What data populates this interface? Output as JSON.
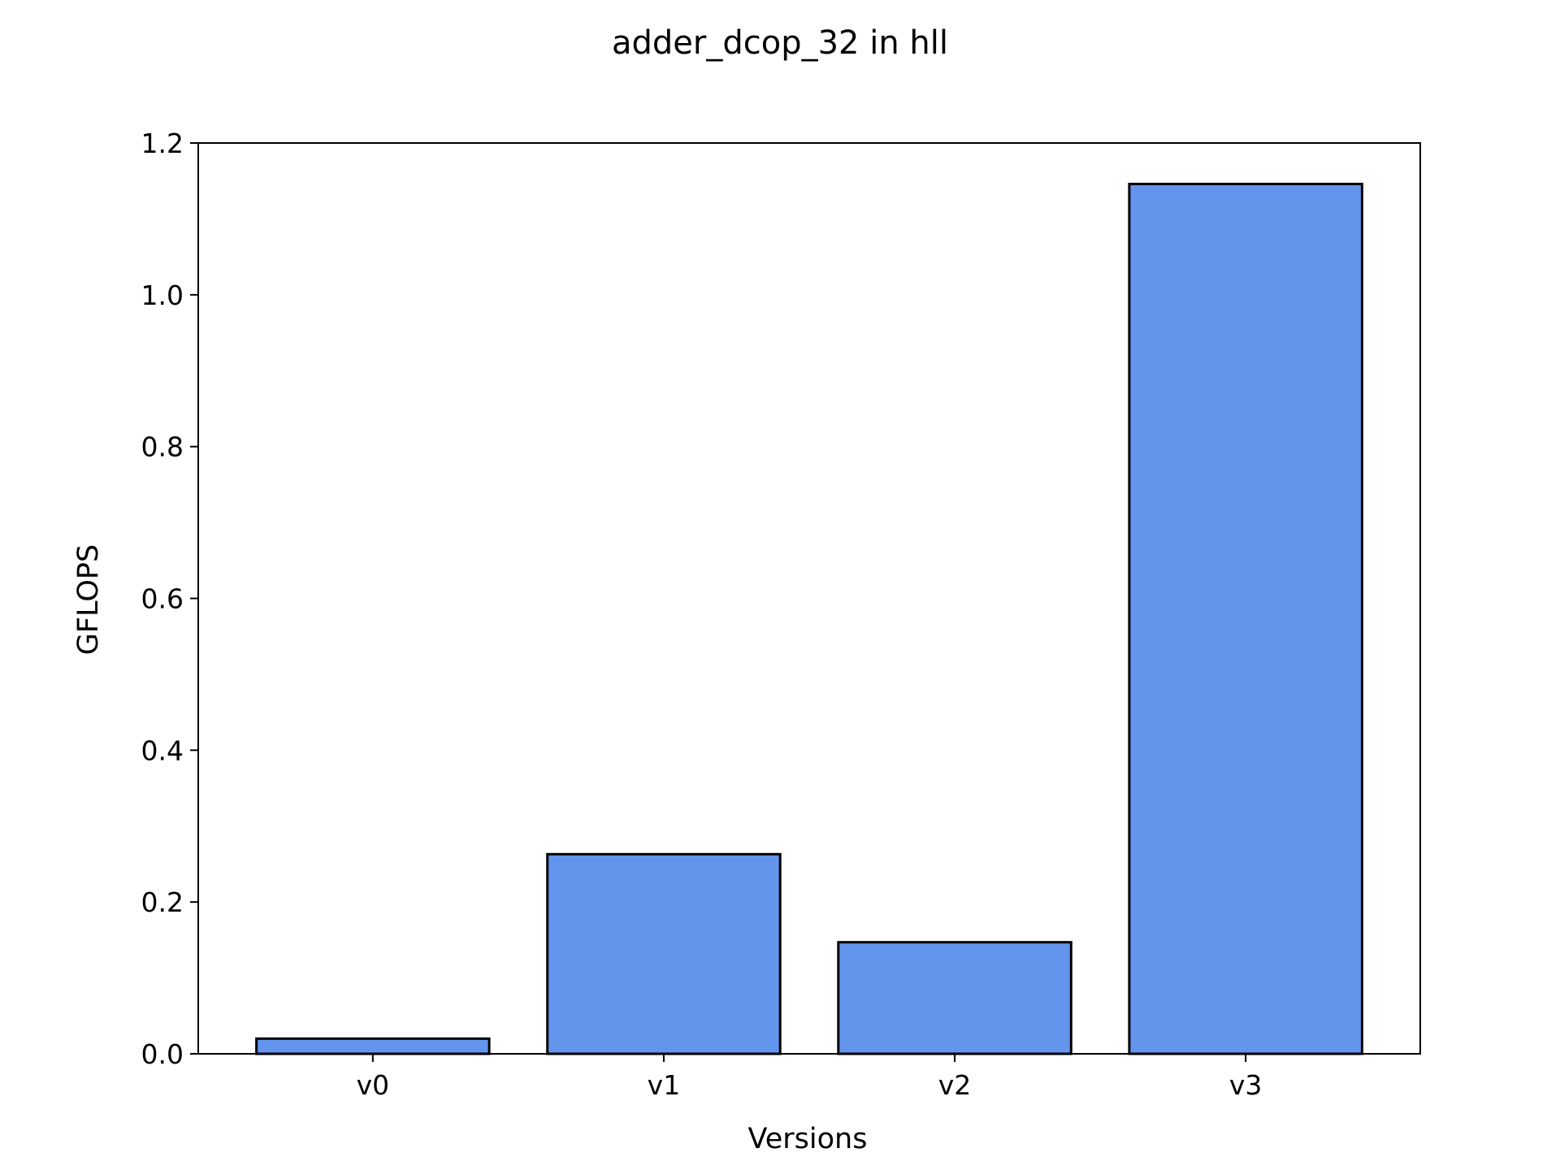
{
  "chart_data": {
    "type": "bar",
    "title": "adder_dcop_32 in hll",
    "xlabel": "Versions",
    "ylabel": "GFLOPS",
    "categories": [
      "v0",
      "v1",
      "v2",
      "v3"
    ],
    "values": [
      0.02,
      0.263,
      0.147,
      1.146
    ],
    "ylim": [
      0,
      1.2
    ],
    "yticks": [
      "0.0",
      "0.2",
      "0.4",
      "0.6",
      "0.8",
      "1.0",
      "1.2"
    ],
    "grid": false,
    "legend": "none",
    "colors": {
      "bar_fill": "#6495ED",
      "bar_edge": "#000000",
      "axis": "#000000"
    }
  }
}
